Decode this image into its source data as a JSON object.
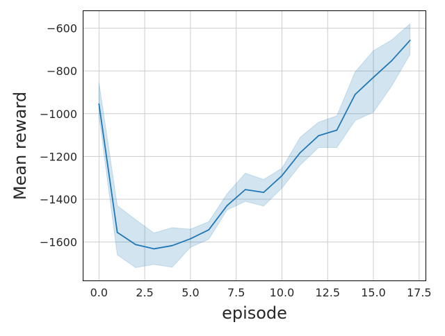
{
  "chart_data": {
    "type": "line",
    "title": "",
    "xlabel": "episode",
    "ylabel": "Mean reward",
    "xlim": [
      -0.85,
      17.85
    ],
    "ylim": [
      -1780,
      -520
    ],
    "xticks": [
      0.0,
      2.5,
      5.0,
      7.5,
      10.0,
      12.5,
      15.0,
      17.5
    ],
    "xtick_labels": [
      "0.0",
      "2.5",
      "5.0",
      "7.5",
      "10.0",
      "12.5",
      "15.0",
      "17.5"
    ],
    "yticks": [
      -1600,
      -1400,
      -1200,
      -1000,
      -800,
      -600
    ],
    "ytick_labels": [
      "−1600",
      "−1400",
      "−1200",
      "−1000",
      "−800",
      "−600"
    ],
    "grid": true,
    "legend": "none",
    "series": [
      {
        "x": [
          0,
          1,
          2,
          3,
          4,
          5,
          6,
          7,
          8,
          9,
          10,
          11,
          12,
          13,
          14,
          15,
          16,
          17
        ],
        "y": [
          -955,
          -1555,
          -1612,
          -1632,
          -1617,
          -1585,
          -1543,
          -1430,
          -1355,
          -1368,
          -1290,
          -1182,
          -1103,
          -1077,
          -910,
          -830,
          -752,
          -657
        ],
        "ci_upper": [
          -855,
          -1430,
          -1495,
          -1558,
          -1533,
          -1540,
          -1505,
          -1375,
          -1278,
          -1308,
          -1255,
          -1110,
          -1040,
          -1010,
          -805,
          -705,
          -655,
          -580
        ],
        "ci_lower": [
          -1010,
          -1660,
          -1720,
          -1705,
          -1718,
          -1625,
          -1587,
          -1450,
          -1410,
          -1432,
          -1348,
          -1240,
          -1158,
          -1158,
          -1032,
          -993,
          -870,
          -723
        ],
        "color": "#1f77b4",
        "band_color": "#1f77b4"
      }
    ]
  }
}
